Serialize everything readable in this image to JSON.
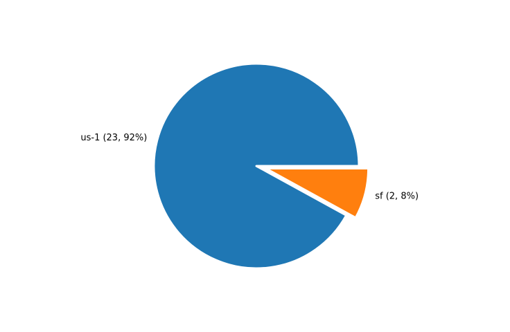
{
  "chart_data": {
    "type": "pie",
    "title": "",
    "slices": [
      {
        "label": "us-1",
        "value": 23,
        "percent": 92,
        "color": "#1f77b4",
        "exploded": false,
        "display": "us-1 (23, 92%)"
      },
      {
        "label": "sf",
        "value": 2,
        "percent": 8,
        "color": "#ff7f0e",
        "exploded": true,
        "display": "sf (2, 8%)"
      }
    ],
    "start_angle_deg": 0,
    "direction": "counterclockwise",
    "slice_edge_color": "#ffffff",
    "legend": "none"
  }
}
